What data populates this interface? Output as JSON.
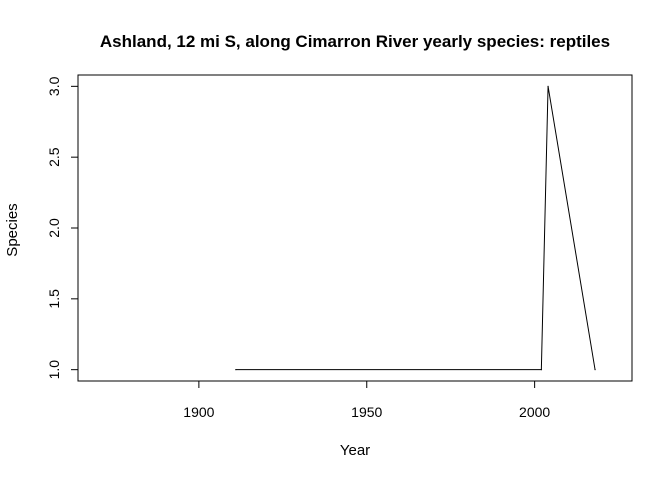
{
  "chart_data": {
    "type": "line",
    "title": "Ashland, 12 mi S, along Cimarron River yearly species: reptiles",
    "xlabel": "Year",
    "ylabel": "Species",
    "xlim": [
      1864,
      2029
    ],
    "ylim": [
      0.92,
      3.08
    ],
    "x_ticks": [
      1900,
      1950,
      2000
    ],
    "y_ticks": [
      1.0,
      1.5,
      2.0,
      2.5,
      3.0
    ],
    "x_tick_labels": [
      "1900",
      "1950",
      "2000"
    ],
    "y_tick_labels": [
      "1.0",
      "1.5",
      "2.0",
      "2.5",
      "3.0"
    ],
    "grid": false,
    "legend": "none",
    "series": [
      {
        "name": "reptiles",
        "color": "#000000",
        "x": [
          1911,
          2002,
          2004,
          2018
        ],
        "y": [
          1,
          1,
          3,
          1
        ]
      }
    ]
  }
}
